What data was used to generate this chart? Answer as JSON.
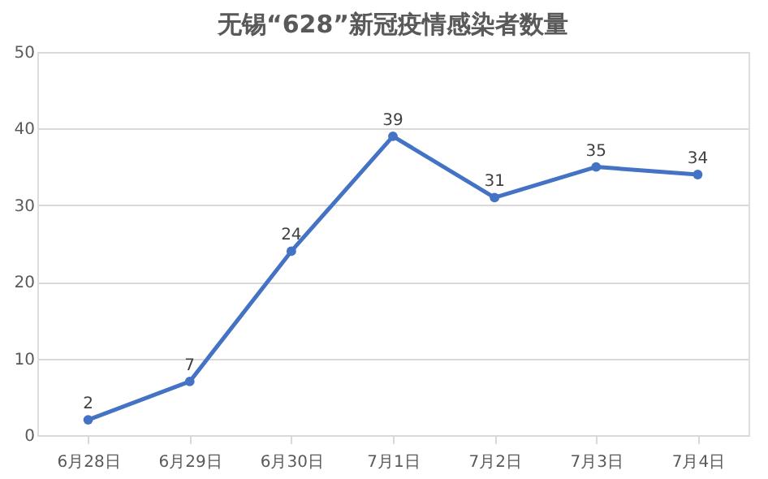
{
  "chart_data": {
    "type": "line",
    "title": "无锡“628”新冠疫情感染者数量",
    "categories": [
      "6月28日",
      "6月29日",
      "6月30日",
      "7月1日",
      "7月2日",
      "7月3日",
      "7月4日"
    ],
    "series": [
      {
        "color": "#4472c4",
        "values": [
          2,
          7,
          24,
          39,
          31,
          35,
          34
        ]
      }
    ],
    "ylim": [
      0,
      50
    ],
    "yticks": [
      0,
      10,
      20,
      30,
      40,
      50
    ],
    "grid": "y",
    "data_labels": true,
    "marker": "circle",
    "line_style": "solid",
    "legend": false
  }
}
